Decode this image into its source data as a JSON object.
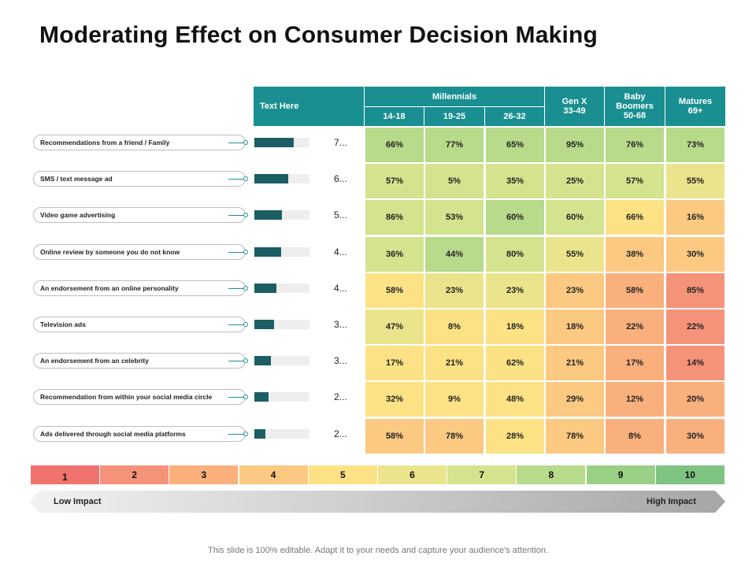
{
  "title": "Moderating Effect on Consumer Decision Making",
  "header": {
    "text_here": "Text Here",
    "millennials": "Millennials",
    "ages": [
      "14-18",
      "19-25",
      "26-32"
    ],
    "genx": [
      "Gen X",
      "33-49"
    ],
    "boomers": [
      "Baby",
      "Boomers",
      "50-68"
    ],
    "matures": [
      "Matures",
      "69+"
    ]
  },
  "rows": [
    {
      "label": "Recommendations  from a friend / Family",
      "score": "7...",
      "bar": 0.72
    },
    {
      "label": "SMS / text message ad",
      "score": "6...",
      "bar": 0.62
    },
    {
      "label": "Video game advertising",
      "score": "5...",
      "bar": 0.5
    },
    {
      "label": "Online review by someone you do not know",
      "score": "4...",
      "bar": 0.49
    },
    {
      "label": "An endorsement from an online personality",
      "score": "4...",
      "bar": 0.4
    },
    {
      "label": "Television ads",
      "score": "3...",
      "bar": 0.36
    },
    {
      "label": "An endorsement from an celebrity",
      "score": "3...",
      "bar": 0.3
    },
    {
      "label": "Recommendation from within your social media circle",
      "score": "2...",
      "bar": 0.26
    },
    {
      "label": "Ads delivered through social media platforms",
      "score": "2...",
      "bar": 0.2
    }
  ],
  "chart_data": {
    "type": "heatmap",
    "title": "Moderating Effect on Consumer Decision Making",
    "columns": [
      "14-18",
      "19-25",
      "26-32",
      "Gen X 33-49",
      "Baby Boomers 50-68",
      "Matures 69+"
    ],
    "column_groups": [
      {
        "name": "Millennials",
        "columns": [
          "14-18",
          "19-25",
          "26-32"
        ]
      }
    ],
    "row_labels": [
      "Recommendations  from a friend / Family",
      "SMS / text message ad",
      "Video game advertising",
      "Online review by someone you do not know",
      "An endorsement from an online personality",
      "Television ads",
      "An endorsement from an celebrity",
      "Recommendation from within your social media circle",
      "Ads delivered through social media platforms"
    ],
    "values": [
      [
        "66%",
        "77%",
        "65%",
        "95%",
        "76%",
        "73%"
      ],
      [
        "57%",
        "5%",
        "35%",
        "25%",
        "57%",
        "55%"
      ],
      [
        "86%",
        "53%",
        "60%",
        "60%",
        "66%",
        "16%"
      ],
      [
        "36%",
        "44%",
        "80%",
        "55%",
        "38%",
        "30%"
      ],
      [
        "58%",
        "23%",
        "23%",
        "23%",
        "58%",
        "85%"
      ],
      [
        "47%",
        "8%",
        "18%",
        "18%",
        "22%",
        "22%"
      ],
      [
        "17%",
        "21%",
        "62%",
        "21%",
        "17%",
        "14%"
      ],
      [
        "32%",
        "9%",
        "48%",
        "29%",
        "12%",
        "20%"
      ],
      [
        "58%",
        "78%",
        "28%",
        "78%",
        "8%",
        "30%"
      ]
    ],
    "impact_levels": [
      [
        8,
        8,
        8,
        8,
        8,
        8
      ],
      [
        7,
        7,
        7,
        7,
        7,
        6
      ],
      [
        7,
        7,
        8,
        7,
        5,
        4
      ],
      [
        7,
        8,
        7,
        6,
        4,
        4
      ],
      [
        5,
        6,
        6,
        4,
        3,
        2
      ],
      [
        6,
        5,
        5,
        4,
        3,
        2
      ],
      [
        5,
        5,
        5,
        4,
        3,
        2
      ],
      [
        5,
        5,
        5,
        4,
        3,
        3
      ],
      [
        4,
        4,
        5,
        4,
        3,
        3
      ]
    ],
    "scale": {
      "levels": [
        "1",
        "2",
        "3",
        "4",
        "5",
        "6",
        "7",
        "8",
        "9",
        "10"
      ],
      "colors": [
        "#f07370",
        "#f5937a",
        "#f9b07d",
        "#fbc981",
        "#fde285",
        "#eae58c",
        "#d4e38e",
        "#b7da8b",
        "#9acf86",
        "#7ec480"
      ],
      "low_label": "Low Impact",
      "high_label": "High Impact"
    }
  },
  "footer": "This slide is 100% editable. Adapt it to your needs and capture your audience's attention.",
  "colors": {
    "header": "#1a8f91",
    "bar": "#1b5e63",
    "bar_track": "#eeeeee"
  }
}
